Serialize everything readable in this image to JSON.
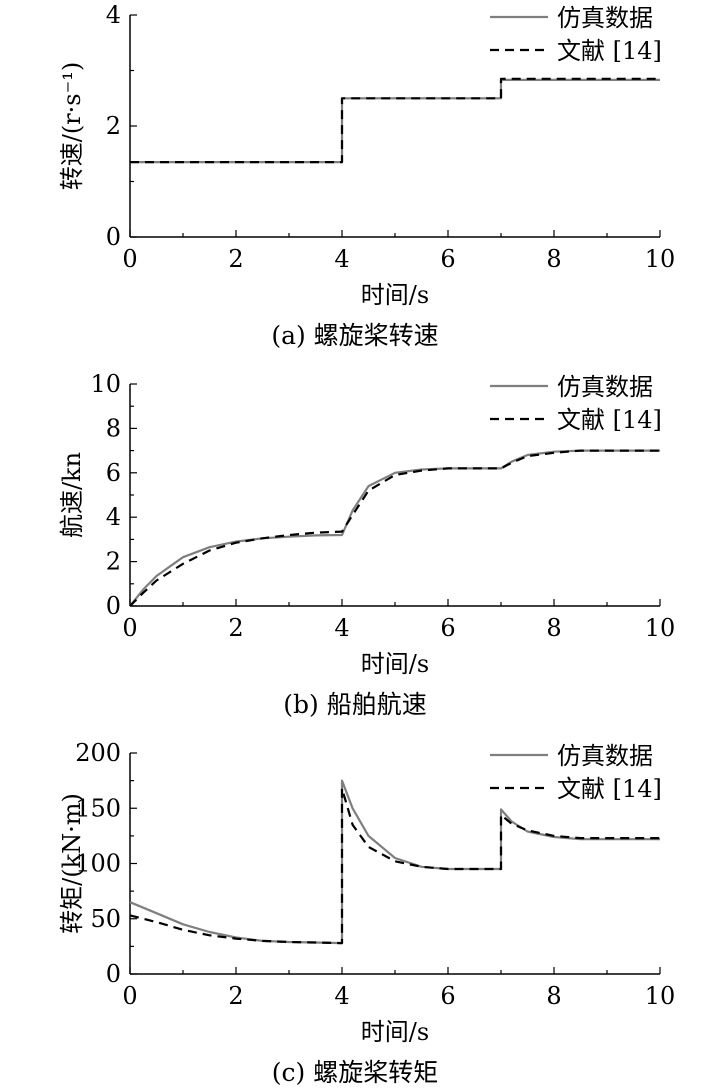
{
  "chart_data": [
    {
      "type": "line",
      "caption": "(a) 螺旋桨转速",
      "xlabel": "时间/s",
      "ylabel": "转速/(r·s⁻¹)",
      "xlim": [
        0,
        10
      ],
      "ylim": [
        0,
        4
      ],
      "xticks": [
        0,
        2,
        4,
        6,
        8,
        10
      ],
      "yticks": [
        0,
        2,
        4
      ],
      "legend": "top-right",
      "grid": false,
      "series": [
        {
          "name": "仿真数据",
          "color": "#7f7f7f",
          "style": "solid",
          "x": [
            0,
            4,
            4,
            7,
            7,
            10
          ],
          "y": [
            1.35,
            1.35,
            2.5,
            2.5,
            2.83,
            2.83
          ]
        },
        {
          "name": "文献 [14]",
          "color": "#000000",
          "style": "dashed",
          "x": [
            0,
            4,
            4,
            7,
            7,
            10
          ],
          "y": [
            1.35,
            1.35,
            2.5,
            2.5,
            2.85,
            2.85
          ]
        }
      ]
    },
    {
      "type": "line",
      "caption": "(b) 船舶航速",
      "xlabel": "时间/s",
      "ylabel": "航速/kn",
      "xlim": [
        0,
        10
      ],
      "ylim": [
        0,
        10
      ],
      "xticks": [
        0,
        2,
        4,
        6,
        8,
        10
      ],
      "yticks": [
        0,
        2,
        4,
        6,
        8,
        10
      ],
      "legend": "top-right",
      "grid": false,
      "series": [
        {
          "name": "仿真数据",
          "color": "#7f7f7f",
          "style": "solid",
          "x": [
            0,
            0.25,
            0.5,
            1,
            1.5,
            2,
            2.5,
            3,
            3.5,
            4,
            4.2,
            4.5,
            5,
            5.5,
            6,
            6.5,
            7,
            7.2,
            7.5,
            8,
            8.5,
            9,
            9.5,
            10
          ],
          "y": [
            0,
            0.75,
            1.35,
            2.2,
            2.65,
            2.9,
            3.05,
            3.12,
            3.18,
            3.2,
            4.3,
            5.4,
            6.0,
            6.15,
            6.2,
            6.2,
            6.2,
            6.5,
            6.8,
            6.95,
            7.0,
            7.0,
            7.0,
            7.0
          ]
        },
        {
          "name": "文献 [14]",
          "color": "#000000",
          "style": "dashed",
          "x": [
            0,
            0.25,
            0.5,
            1,
            1.5,
            2,
            2.5,
            3,
            3.5,
            4,
            4.2,
            4.5,
            5,
            5.5,
            6,
            6.5,
            7,
            7.2,
            7.5,
            8,
            8.5,
            9,
            9.5,
            10
          ],
          "y": [
            0,
            0.6,
            1.15,
            1.9,
            2.5,
            2.85,
            3.05,
            3.2,
            3.3,
            3.35,
            4.1,
            5.2,
            5.9,
            6.1,
            6.2,
            6.2,
            6.2,
            6.45,
            6.75,
            6.9,
            7.0,
            7.0,
            7.0,
            7.0
          ]
        }
      ]
    },
    {
      "type": "line",
      "caption": "(c) 螺旋桨转矩",
      "xlabel": "时间/s",
      "ylabel": "转矩/(kN·m)",
      "xlim": [
        0,
        10
      ],
      "ylim": [
        0,
        200
      ],
      "xticks": [
        0,
        2,
        4,
        6,
        8,
        10
      ],
      "yticks": [
        0,
        50,
        100,
        150,
        200
      ],
      "legend": "top-right",
      "grid": false,
      "series": [
        {
          "name": "仿真数据",
          "color": "#7f7f7f",
          "style": "solid",
          "x": [
            0,
            0.5,
            1,
            1.5,
            2,
            2.5,
            3,
            3.5,
            4,
            4,
            4.2,
            4.5,
            5,
            5.5,
            6,
            6.5,
            7,
            7,
            7.2,
            7.5,
            8,
            8.5,
            9,
            9.5,
            10
          ],
          "y": [
            65,
            55,
            45,
            38,
            33,
            30,
            29,
            28.5,
            28,
            175,
            150,
            125,
            105,
            97,
            95,
            95,
            95,
            149,
            138,
            129,
            124,
            122,
            122,
            122,
            122
          ]
        },
        {
          "name": "文献 [14]",
          "color": "#000000",
          "style": "dashed",
          "x": [
            0,
            0.5,
            1,
            1.5,
            2,
            2.5,
            3,
            3.5,
            4,
            4,
            4.2,
            4.5,
            5,
            5.5,
            6,
            6.5,
            7,
            7,
            7.2,
            7.5,
            8,
            8.5,
            9,
            9.5,
            10
          ],
          "y": [
            53,
            47,
            40,
            35,
            32,
            30,
            29,
            28.5,
            28,
            168,
            135,
            115,
            102,
            97,
            95,
            95,
            95,
            144,
            136,
            130,
            125,
            123,
            123,
            123,
            123
          ]
        }
      ]
    }
  ]
}
